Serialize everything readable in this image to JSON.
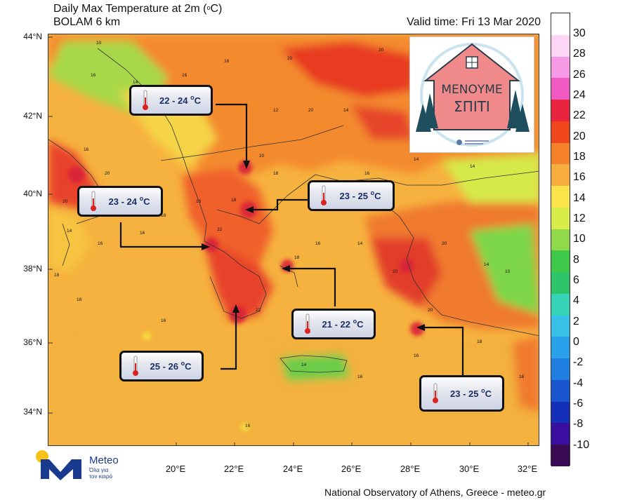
{
  "header": {
    "title_main": "Daily Max Temperature at 2m (",
    "title_unit": "o",
    "title_tail": "C)",
    "model": "BOLAM 6 km",
    "valid_time": "Valid time: Fri 13 Mar 2020"
  },
  "axes": {
    "latitudes": [
      "44°N",
      "42°N",
      "40°N",
      "38°N",
      "36°N",
      "34°N"
    ],
    "longitudes": [
      "20°E",
      "22°E",
      "24°E",
      "26°E",
      "28°E",
      "30°E",
      "32°E"
    ]
  },
  "colorbar": {
    "levels": [
      "30",
      "28",
      "26",
      "24",
      "22",
      "20",
      "18",
      "16",
      "14",
      "12",
      "10",
      "8",
      "6",
      "4",
      "2",
      "0",
      "-2",
      "-4",
      "-6",
      "-8",
      "-10"
    ],
    "colors": [
      "#ffffff",
      "#fcd6f4",
      "#f79ae6",
      "#f05ac2",
      "#e8243f",
      "#f0461e",
      "#f5822a",
      "#f7ad3e",
      "#fbe44a",
      "#d8ec4a",
      "#8fd94a",
      "#3fc94a",
      "#2ec46a",
      "#36d4b6",
      "#38c0e6",
      "#2aa0ea",
      "#1f7fe0",
      "#1a55d0",
      "#1430b8",
      "#3a0fa0",
      "#3a0b54"
    ]
  },
  "callouts": [
    {
      "range": "22 - 24 ",
      "unit": "C"
    },
    {
      "range": "23 - 24 ",
      "unit": "C"
    },
    {
      "range": "23 - 25 ",
      "unit": "C"
    },
    {
      "range": "21 - 22 ",
      "unit": "C"
    },
    {
      "range": "25 - 26 ",
      "unit": "C"
    },
    {
      "range": "23 - 25 ",
      "unit": "C"
    }
  ],
  "degree_mark": "o",
  "map_labels": {
    "v10": "10",
    "v12": "12",
    "v14": "14",
    "v16": "16",
    "v18": "18",
    "v20": "20",
    "v22": "22"
  },
  "campaign": {
    "line1": "ΜΕΝΟΥΜΕ",
    "line2": "ΣΠΙΤΙ",
    "colors": {
      "house": "#f08a8a",
      "tree": "#1f4f5f",
      "ring": "#c9e3ef"
    }
  },
  "brand": {
    "name": "Meteo",
    "slogan_line1": "Όλα για",
    "slogan_line2": "τον καιρό",
    "colors": {
      "blue": "#1a3a8f",
      "sun": "#f7c21a"
    }
  },
  "footer": "National Observatory of Athens, Greece - meteo.gr"
}
